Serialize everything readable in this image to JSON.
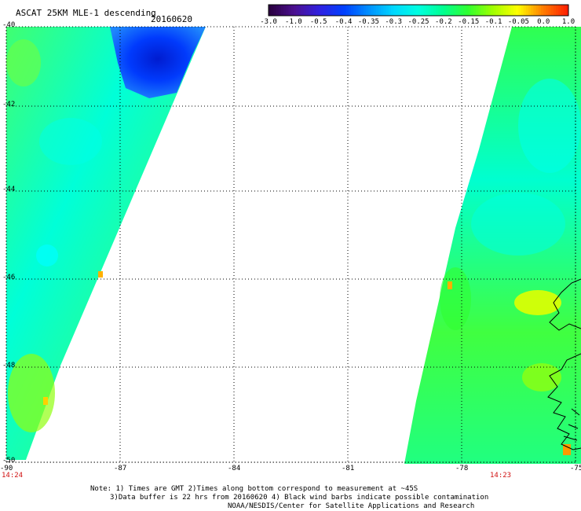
{
  "header": {
    "title": "ASCAT 25KM MLE-1 descending",
    "date": "20160620"
  },
  "colorbar": {
    "tick_labels": [
      "-3.0",
      "-1.0",
      "-0.5",
      "-0.4",
      "-0.35",
      "-0.3",
      "-0.25",
      "-0.2",
      "-0.15",
      "-0.1",
      "-0.05",
      "0.0",
      "1.0"
    ],
    "colors": [
      "#2a0040",
      "#4b1090",
      "#3020e0",
      "#0040ff",
      "#0090ff",
      "#00d8ff",
      "#00ffe0",
      "#00ff90",
      "#30ff30",
      "#a0ff00",
      "#ffff00",
      "#ff8000",
      "#ff2000"
    ]
  },
  "map": {
    "lat_labels": [
      "-40",
      "-42",
      "-44",
      "-46",
      "-48",
      "-50"
    ],
    "lon_labels": [
      "-90",
      "-87",
      "-84",
      "-81",
      "-78",
      "-75"
    ],
    "time_left": "14:24",
    "time_right": "14:23"
  },
  "notes": {
    "line1": "Note: 1) Times are GMT 2)Times along bottom correspond to measurement at ~45S",
    "line2": "3)Data buffer is 22 hrs from 20160620 4) Black wind barbs indicate possible contamination",
    "line3": "NOAA/NESDIS/Center for Satellite Applications and Research"
  }
}
